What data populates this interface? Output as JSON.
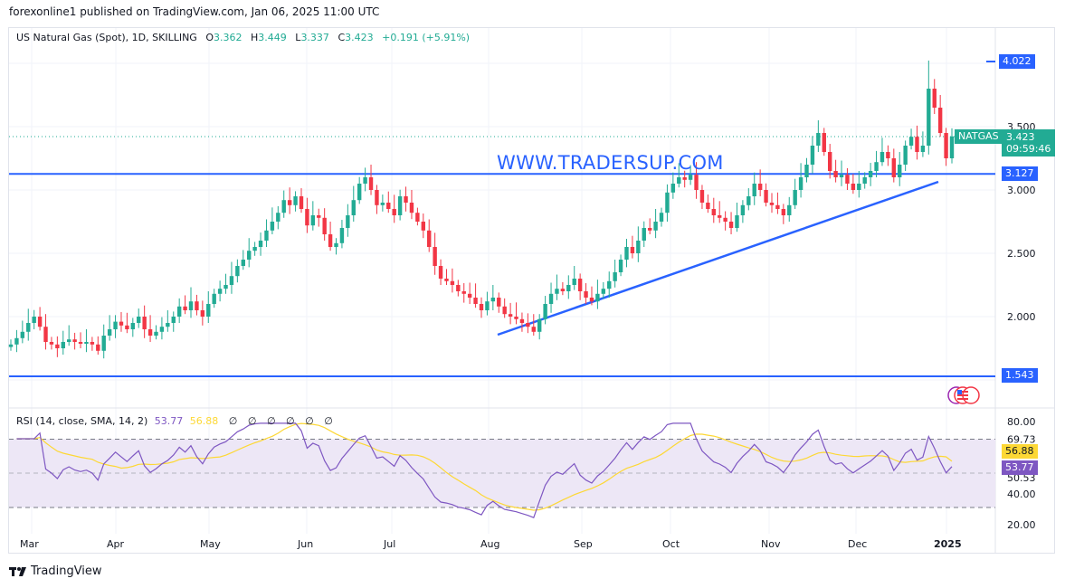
{
  "publisher_line": "forexonline1 published on TradingView.com, Jan 06, 2025 11:00 UTC",
  "legend": {
    "symbol": "US Natural Gas (Spot), 1D, SKILLING",
    "o_label": "O",
    "o": "3.362",
    "h_label": "H",
    "h": "3.449",
    "l_label": "L",
    "l": "3.337",
    "c_label": "C",
    "c": "3.423",
    "change": "+0.191 (+5.91%)"
  },
  "watermark": "WWW.TRADERSUP.COM",
  "price_axis": {
    "ticks": [
      "3.500",
      "3.000",
      "2.500",
      "2.000"
    ],
    "tags": {
      "high_line": "4.022",
      "last_symbol": "NATGAS",
      "last_price": "3.423",
      "countdown": "09:59:46",
      "resistance": "3.127",
      "support": "1.543"
    }
  },
  "rsi": {
    "label": "RSI (14, close, SMA, 14, 2)",
    "value": "53.77",
    "sma": "56.88",
    "nulls": [
      "∅",
      "∅",
      "∅",
      "∅",
      "∅",
      "∅"
    ],
    "axis_ticks": [
      "80.00",
      "69.73",
      "50.53",
      "40.00",
      "20.00"
    ],
    "tag_sma": "56.88",
    "tag_rsi": "53.77"
  },
  "time_axis": [
    "Mar",
    "Apr",
    "May",
    "Jun",
    "Jul",
    "Aug",
    "Sep",
    "Oct",
    "Nov",
    "Dec",
    "2025"
  ],
  "footer": {
    "brand": "TradingView"
  },
  "colors": {
    "up": "#22ab94",
    "down": "#f23645",
    "line_blue": "#2962ff",
    "rsi": "#7e57c2",
    "rsi_sma": "#fdd835",
    "rsi_band": "#ede7f6"
  },
  "chart_data": {
    "type": "candlestick",
    "title": "US Natural Gas (Spot), 1D, SKILLING",
    "y_range": [
      1.45,
      4.15
    ],
    "x_labels": [
      "Mar",
      "Apr",
      "May",
      "Jun",
      "Jul",
      "Aug",
      "Sep",
      "Oct",
      "Nov",
      "Dec",
      "2025"
    ],
    "horizontal_lines": [
      {
        "name": "resistance",
        "value": 3.127
      },
      {
        "name": "support",
        "value": 1.543
      }
    ],
    "trendline": {
      "from": [
        "Aug start",
        1.86
      ],
      "to": [
        "late Dec",
        3.07
      ]
    },
    "closes_approx": [
      1.78,
      1.83,
      1.88,
      1.95,
      2.0,
      1.92,
      1.8,
      1.78,
      1.75,
      1.8,
      1.82,
      1.8,
      1.79,
      1.8,
      1.78,
      1.73,
      1.85,
      1.9,
      1.96,
      1.93,
      1.9,
      1.95,
      2.0,
      1.9,
      1.85,
      1.88,
      1.92,
      1.95,
      2.0,
      2.08,
      2.05,
      2.12,
      2.05,
      2.0,
      2.1,
      2.18,
      2.22,
      2.25,
      2.32,
      2.4,
      2.45,
      2.52,
      2.55,
      2.6,
      2.68,
      2.75,
      2.82,
      2.92,
      2.88,
      2.95,
      2.85,
      2.72,
      2.8,
      2.78,
      2.65,
      2.55,
      2.58,
      2.7,
      2.8,
      2.92,
      3.05,
      3.1,
      3.0,
      2.88,
      2.9,
      2.85,
      2.8,
      2.95,
      2.9,
      2.82,
      2.75,
      2.68,
      2.55,
      2.4,
      2.3,
      2.28,
      2.25,
      2.2,
      2.18,
      2.15,
      2.1,
      2.05,
      2.12,
      2.15,
      2.08,
      2.02,
      2.0,
      1.98,
      1.95,
      1.92,
      1.88,
      1.98,
      2.1,
      2.18,
      2.22,
      2.2,
      2.25,
      2.3,
      2.2,
      2.15,
      2.12,
      2.18,
      2.22,
      2.28,
      2.35,
      2.45,
      2.55,
      2.5,
      2.6,
      2.7,
      2.68,
      2.75,
      2.82,
      2.98,
      3.05,
      3.1,
      3.08,
      3.12,
      3.0,
      2.9,
      2.85,
      2.8,
      2.78,
      2.75,
      2.7,
      2.8,
      2.88,
      2.95,
      3.05,
      3.0,
      2.9,
      2.88,
      2.85,
      2.8,
      2.88,
      3.0,
      3.1,
      3.2,
      3.35,
      3.45,
      3.3,
      3.15,
      3.1,
      3.12,
      3.05,
      3.0,
      3.05,
      3.1,
      3.15,
      3.22,
      3.3,
      3.25,
      3.1,
      3.2,
      3.35,
      3.42,
      3.3,
      3.35,
      3.8,
      3.65,
      3.45,
      3.25,
      3.423
    ],
    "rsi_series": {
      "name": "RSI(14)",
      "last": 53.77
    },
    "rsi_sma_series": {
      "name": "SMA(14)",
      "last": 56.88
    },
    "rsi_bands": [
      69.73,
      50.53
    ]
  }
}
